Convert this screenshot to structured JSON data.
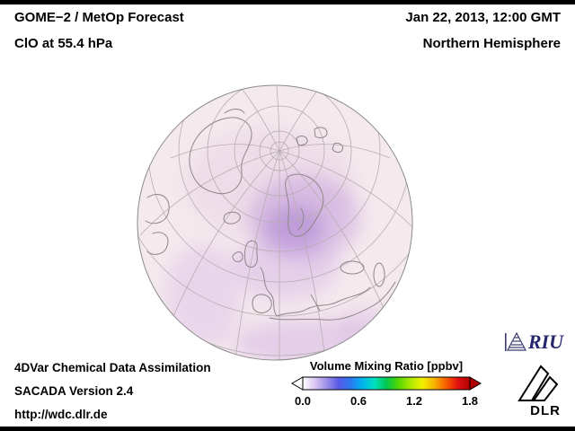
{
  "header": {
    "title_line1": "GOME−2 / MetOp Forecast",
    "title_line2": "ClO at 55.4 hPa",
    "datetime": "Jan 22, 2013, 12:00 GMT",
    "region": "Northern Hemisphere"
  },
  "globe": {
    "projection": "orthographic",
    "view": "Northern Hemisphere",
    "quantity": "ClO volume mixing ratio",
    "level": "55.4 hPa",
    "base_color": "#f4e9ed",
    "graticule_color": "#b7adb1",
    "coast_color": "#8d8689",
    "enhancement_color": "#a77fd0"
  },
  "footer": {
    "line1": "4DVar Chemical Data Assimilation",
    "line2": "SACADA Version 2.4",
    "line3": "http://wdc.dlr.de"
  },
  "colorbar": {
    "title": "Volume Mixing Ratio [ppbv]",
    "min": 0.0,
    "max": 1.8,
    "ticks": [
      "0.0",
      "0.6",
      "1.2",
      "1.8"
    ],
    "gradient": [
      "#ffffff",
      "#dcc6f2",
      "#9b8fe8",
      "#5a5ae8",
      "#2a7af0",
      "#00b4f0",
      "#00e0c0",
      "#00c850",
      "#52d800",
      "#aae800",
      "#f2f200",
      "#f8b400",
      "#f85e00",
      "#e01010",
      "#b00000"
    ]
  },
  "logos": {
    "riu_label": "RIU",
    "dlr_label": "DLR"
  }
}
